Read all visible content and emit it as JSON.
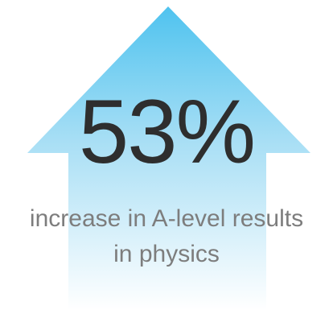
{
  "stat": {
    "value": "53%",
    "caption_line1": "increase in A-level results",
    "caption_line2": "in physics"
  },
  "graphic": {
    "icon": "up-arrow-icon",
    "gradient_top_color": "#4fc3ef",
    "gradient_bottom_color": "#ffffff"
  }
}
